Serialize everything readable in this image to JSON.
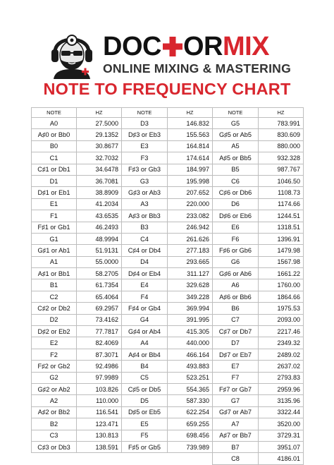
{
  "brand": {
    "name_part1": "DOC",
    "name_part2": "OR",
    "name_part3": "MIX",
    "subtitle": "ONLINE MIXING & MASTERING",
    "accent_color": "#d8262e"
  },
  "title": "NOTE TO FREQUENCY CHART",
  "headers": {
    "note": "NOTE",
    "hz": "HZ"
  },
  "columns": [
    [
      [
        "A0",
        "27.5000"
      ],
      [
        "A♯0 or Bb0",
        "29.1352"
      ],
      [
        "B0",
        "30.8677"
      ],
      [
        "C1",
        "32.7032"
      ],
      [
        "C♯1 or Db1",
        "34.6478"
      ],
      [
        "D1",
        "36.7081"
      ],
      [
        "D♯1 or Eb1",
        "38.8909"
      ],
      [
        "E1",
        "41.2034"
      ],
      [
        "F1",
        "43.6535"
      ],
      [
        "F♯1 or Gb1",
        "46.2493"
      ],
      [
        "G1",
        "48.9994"
      ],
      [
        "G♯1 or Ab1",
        "51.9131"
      ],
      [
        "A1",
        "55.0000"
      ],
      [
        "A♯1 or Bb1",
        "58.2705"
      ],
      [
        "B1",
        "61.7354"
      ],
      [
        "C2",
        "65.4064"
      ],
      [
        "C♯2 or Db2",
        "69.2957"
      ],
      [
        "D2",
        "73.4162"
      ],
      [
        "D♯2 or Eb2",
        "77.7817"
      ],
      [
        "E2",
        "82.4069"
      ],
      [
        "F2",
        "87.3071"
      ],
      [
        "F♯2 or Gb2",
        "92.4986"
      ],
      [
        "G2",
        "97.9989"
      ],
      [
        "G♯2 or Ab2",
        "103.826"
      ],
      [
        "A2",
        "110.000"
      ],
      [
        "A♯2 or Bb2",
        "116.541"
      ],
      [
        "B2",
        "123.471"
      ],
      [
        "C3",
        "130.813"
      ],
      [
        "C♯3 or Db3",
        "138.591"
      ]
    ],
    [
      [
        "D3",
        "146.832"
      ],
      [
        "D♯3 or Eb3",
        "155.563"
      ],
      [
        "E3",
        "164.814"
      ],
      [
        "F3",
        "174.614"
      ],
      [
        "F♯3 or Gb3",
        "184.997"
      ],
      [
        "G3",
        "195.998"
      ],
      [
        "G♯3 or Ab3",
        "207.652"
      ],
      [
        "A3",
        "220.000"
      ],
      [
        "A♯3 or Bb3",
        "233.082"
      ],
      [
        "B3",
        "246.942"
      ],
      [
        "C4",
        "261.626"
      ],
      [
        "C♯4 or Db4",
        "277.183"
      ],
      [
        "D4",
        "293.665"
      ],
      [
        "D♯4 or Eb4",
        "311.127"
      ],
      [
        "E4",
        "329.628"
      ],
      [
        "F4",
        "349.228"
      ],
      [
        "F♯4 or Gb4",
        "369.994"
      ],
      [
        "G4",
        "391.995"
      ],
      [
        "G♯4 or Ab4",
        "415.305"
      ],
      [
        "A4",
        "440.000"
      ],
      [
        "A♯4 or Bb4",
        "466.164"
      ],
      [
        "B4",
        "493.883"
      ],
      [
        "C5",
        "523.251"
      ],
      [
        "C♯5 or Db5",
        "554.365"
      ],
      [
        "D5",
        "587.330"
      ],
      [
        "D♯5 or Eb5",
        "622.254"
      ],
      [
        "E5",
        "659.255"
      ],
      [
        "F5",
        "698.456"
      ],
      [
        "F♯5 or Gb5",
        "739.989"
      ]
    ],
    [
      [
        "G5",
        "783.991"
      ],
      [
        "G♯5 or Ab5",
        "830.609"
      ],
      [
        "A5",
        "880.000"
      ],
      [
        "A♯5 or Bb5",
        "932.328"
      ],
      [
        "B5",
        "987.767"
      ],
      [
        "C6",
        "1046.50"
      ],
      [
        "C♯6 or Db6",
        "1108.73"
      ],
      [
        "D6",
        "1174.66"
      ],
      [
        "D♯6 or Eb6",
        "1244.51"
      ],
      [
        "E6",
        "1318.51"
      ],
      [
        "F6",
        "1396.91"
      ],
      [
        "F♯6 or Gb6",
        "1479.98"
      ],
      [
        "G6",
        "1567.98"
      ],
      [
        "G♯6 or Ab6",
        "1661.22"
      ],
      [
        "A6",
        "1760.00"
      ],
      [
        "A♯6 or Bb6",
        "1864.66"
      ],
      [
        "B6",
        "1975.53"
      ],
      [
        "C7",
        "2093.00"
      ],
      [
        "C♯7 or Db7",
        "2217.46"
      ],
      [
        "D7",
        "2349.32"
      ],
      [
        "D♯7 or Eb7",
        "2489.02"
      ],
      [
        "E7",
        "2637.02"
      ],
      [
        "F7",
        "2793.83"
      ],
      [
        "F♯7 or Gb7",
        "2959.96"
      ],
      [
        "G7",
        "3135.96"
      ],
      [
        "G♯7 or Ab7",
        "3322.44"
      ],
      [
        "A7",
        "3520.00"
      ],
      [
        "A♯7 or Bb7",
        "3729.31"
      ],
      [
        "B7",
        "3951.07"
      ],
      [
        "C8",
        "4186.01"
      ]
    ]
  ]
}
